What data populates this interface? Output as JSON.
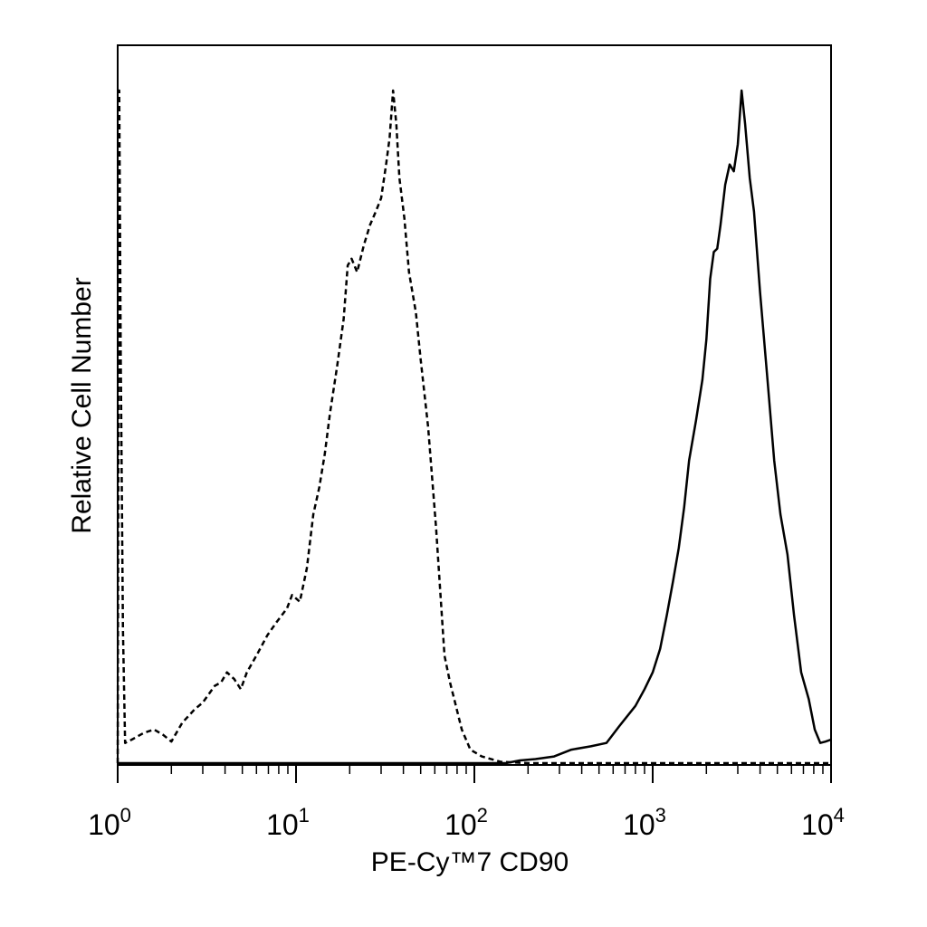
{
  "chart_data": {
    "type": "line",
    "title": "",
    "xlabel": "PE-Cy™7 CD90",
    "ylabel": "Relative Cell Number",
    "x_scale": "log",
    "xlim": [
      1,
      10000
    ],
    "ylim": [
      0,
      100
    ],
    "grid": false,
    "legend": "none",
    "x_ticks": [
      {
        "base": "10",
        "exp": "0",
        "value": 1
      },
      {
        "base": "10",
        "exp": "1",
        "value": 10
      },
      {
        "base": "10",
        "exp": "2",
        "value": 100
      },
      {
        "base": "10",
        "exp": "3",
        "value": 1000
      },
      {
        "base": "10",
        "exp": "4",
        "value": 10000
      }
    ],
    "series": [
      {
        "style": "dashed",
        "color": "#000000",
        "points": [
          [
            1.0,
            0
          ],
          [
            1.02,
            100
          ],
          [
            1.04,
            60
          ],
          [
            1.07,
            20
          ],
          [
            1.1,
            3
          ],
          [
            1.2,
            3.5
          ],
          [
            1.4,
            4.5
          ],
          [
            1.6,
            5.0
          ],
          [
            1.8,
            4.2
          ],
          [
            2.0,
            3.2
          ],
          [
            2.3,
            6.0
          ],
          [
            2.7,
            8.0
          ],
          [
            3.0,
            9.0
          ],
          [
            3.5,
            11.5
          ],
          [
            3.8,
            12.0
          ],
          [
            4.1,
            13.5
          ],
          [
            4.5,
            12.5
          ],
          [
            4.9,
            11.0
          ],
          [
            5.3,
            13.5
          ],
          [
            6.0,
            16.0
          ],
          [
            6.9,
            19.0
          ],
          [
            7.8,
            21.0
          ],
          [
            8.9,
            23.0
          ],
          [
            9.5,
            25.0
          ],
          [
            10.5,
            24.0
          ],
          [
            11.5,
            29.0
          ],
          [
            12.5,
            37.0
          ],
          [
            13.5,
            41.0
          ],
          [
            14.5,
            46.0
          ],
          [
            15.5,
            52.0
          ],
          [
            17.0,
            59.0
          ],
          [
            18.5,
            66.0
          ],
          [
            19.5,
            74.0
          ],
          [
            20.5,
            75.0
          ],
          [
            22.0,
            73.0
          ],
          [
            24.0,
            77.0
          ],
          [
            26.0,
            80.0
          ],
          [
            28.0,
            82.0
          ],
          [
            30.0,
            84.0
          ],
          [
            32.0,
            89.0
          ],
          [
            33.5,
            93.0
          ],
          [
            35.0,
            100.0
          ],
          [
            36.5,
            95.0
          ],
          [
            38.0,
            87.0
          ],
          [
            40.5,
            81.0
          ],
          [
            43.0,
            73.0
          ],
          [
            47.0,
            67.0
          ],
          [
            50.0,
            60.0
          ],
          [
            55.0,
            50.0
          ],
          [
            61.0,
            35.0
          ],
          [
            68.0,
            16.0
          ],
          [
            73.0,
            12.0
          ],
          [
            78.0,
            9.0
          ],
          [
            85.0,
            5.0
          ],
          [
            95.0,
            2.0
          ],
          [
            110.0,
            1.0
          ],
          [
            140.0,
            0.2
          ],
          [
            200.0,
            0.0
          ],
          [
            10000.0,
            0.0
          ]
        ]
      },
      {
        "style": "solid",
        "color": "#000000",
        "points": [
          [
            1.0,
            0.0
          ],
          [
            150.0,
            0.0
          ],
          [
            180.0,
            0.4
          ],
          [
            220.0,
            0.6
          ],
          [
            280.0,
            1.0
          ],
          [
            350.0,
            2.0
          ],
          [
            450.0,
            2.5
          ],
          [
            550.0,
            3.0
          ],
          [
            650.0,
            5.5
          ],
          [
            800.0,
            8.5
          ],
          [
            900.0,
            11.0
          ],
          [
            1000.0,
            13.5
          ],
          [
            1100.0,
            17.0
          ],
          [
            1200.0,
            22.0
          ],
          [
            1300.0,
            27.0
          ],
          [
            1400.0,
            32.0
          ],
          [
            1500.0,
            38.0
          ],
          [
            1600.0,
            45.0
          ],
          [
            1750.0,
            51.0
          ],
          [
            1900.0,
            57.0
          ],
          [
            2000.0,
            63.0
          ],
          [
            2100.0,
            72.0
          ],
          [
            2200.0,
            76.0
          ],
          [
            2300.0,
            76.5
          ],
          [
            2400.0,
            80.0
          ],
          [
            2550.0,
            86.0
          ],
          [
            2700.0,
            89.0
          ],
          [
            2850.0,
            88.0
          ],
          [
            3000.0,
            92.0
          ],
          [
            3150.0,
            100.0
          ],
          [
            3300.0,
            95.0
          ],
          [
            3500.0,
            87.0
          ],
          [
            3700.0,
            82.0
          ],
          [
            4000.0,
            70.0
          ],
          [
            4400.0,
            57.0
          ],
          [
            4800.0,
            45.0
          ],
          [
            5200.0,
            37.0
          ],
          [
            5700.0,
            31.0
          ],
          [
            6200.0,
            22.0
          ],
          [
            6800.0,
            13.5
          ],
          [
            7500.0,
            9.5
          ],
          [
            8100.0,
            5.0
          ],
          [
            8700.0,
            3.0
          ],
          [
            9300.0,
            3.2
          ],
          [
            10000.0,
            3.5
          ]
        ]
      }
    ]
  }
}
